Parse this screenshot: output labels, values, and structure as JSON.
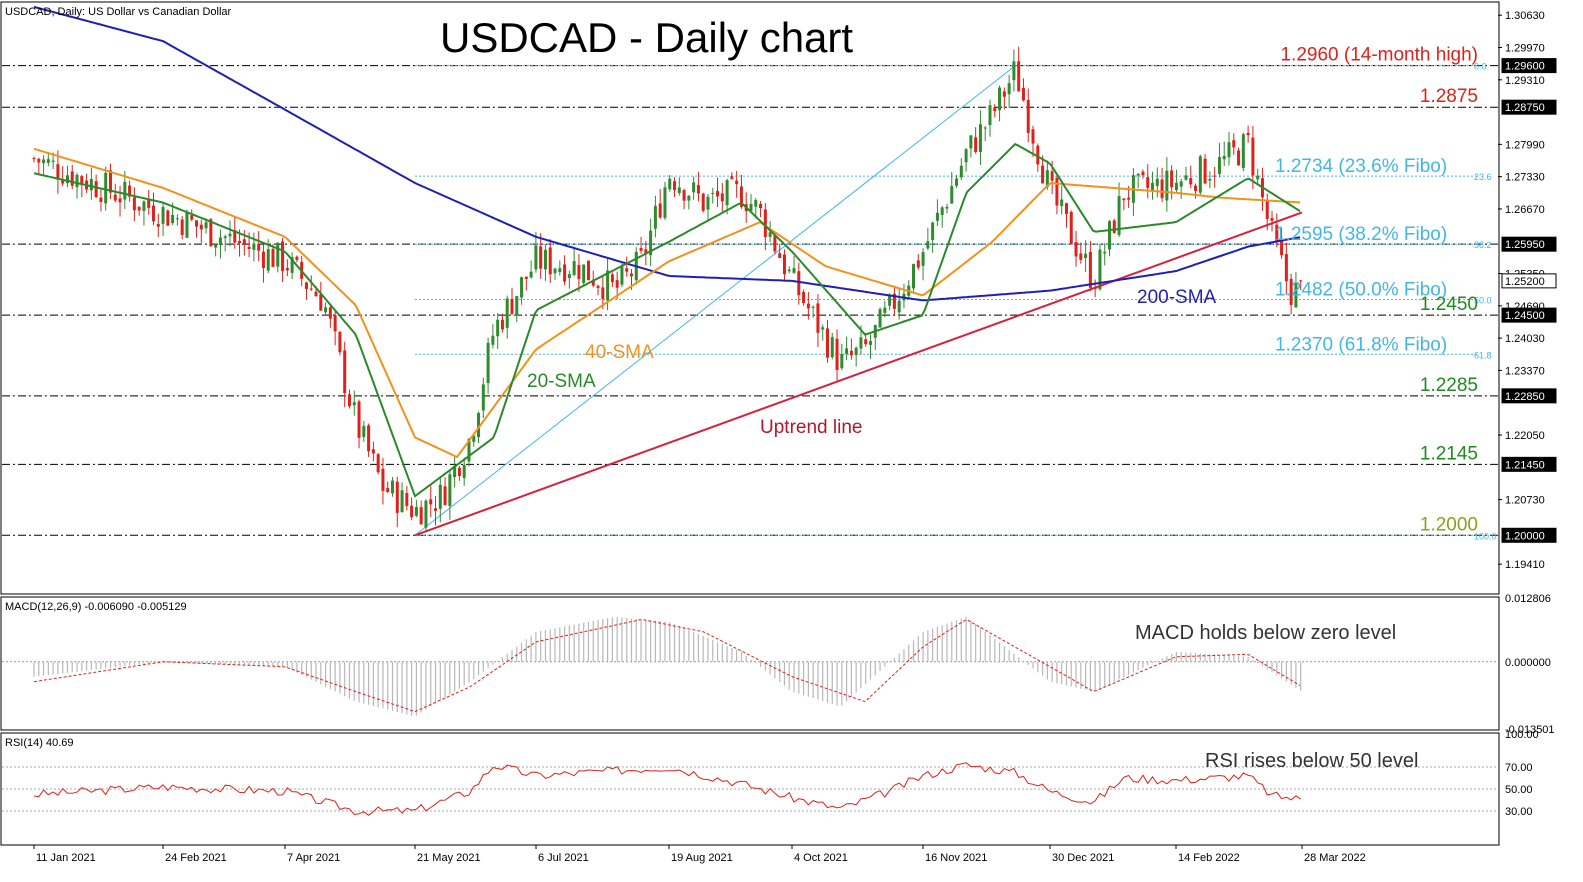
{
  "header": {
    "symbol_info": "USDCAD, Daily:  US Dollar vs Canadian Dollar",
    "title": "USDCAD - Daily chart"
  },
  "colors": {
    "up": "#2e8b2e",
    "down": "#e0201a",
    "sma20": "#2a8a2a",
    "sma40": "#f2911b",
    "sma200": "#1f1fb4",
    "uptrend": "#d8203c",
    "fibo": "#41b7e8",
    "level": "#000000",
    "macd_hist": "#b8b8b8",
    "macd_signal": "#e0201a",
    "rsi": "#e0201a"
  },
  "chart_data": [
    {
      "type": "candlestick",
      "title": "USDCAD - Daily chart",
      "ylim": [
        1.188,
        1.309
      ],
      "x_ticks": [
        "11 Jan 2021",
        "24 Feb 2021",
        "7 Apr 2021",
        "21 May 2021",
        "6 Jul 2021",
        "19 Aug 2021",
        "4 Oct 2021",
        "16 Nov 2021",
        "30 Dec 2021",
        "14 Feb 2022",
        "28 Mar 2022"
      ],
      "y_ticks": [
        "1.30630",
        "1.29970",
        "1.29310",
        "1.27990",
        "1.27330",
        "1.26670",
        "1.25350",
        "1.24690",
        "1.24030",
        "1.23370",
        "1.22050",
        "1.20730",
        "1.19410"
      ],
      "price_tags": [
        "1.29600",
        "1.28750",
        "1.25950",
        "1.25200",
        "1.24500",
        "1.22850",
        "1.21450",
        "1.20000"
      ],
      "levels": [
        {
          "value": 1.296,
          "label": "1.2960 (14-month high)",
          "color": "#e0201a"
        },
        {
          "value": 1.2875,
          "label": "1.2875",
          "color": "#e0201a"
        },
        {
          "value": 1.2595,
          "label": "",
          "color": "#000000"
        },
        {
          "value": 1.245,
          "label": "1.2450",
          "color": "#1f8a1f"
        },
        {
          "value": 1.2285,
          "label": "1.2285",
          "color": "#1f8a1f"
        },
        {
          "value": 1.2145,
          "label": "1.2145",
          "color": "#1f8a1f"
        },
        {
          "value": 1.2,
          "label": "1.2000",
          "color": "#8aa020"
        }
      ],
      "fibonacci": [
        {
          "value": 1.296,
          "label": "",
          "tag": "0.0"
        },
        {
          "value": 1.2734,
          "label": "1.2734 (23.6% Fibo)",
          "tag": "23.6"
        },
        {
          "value": 1.2595,
          "label": "1.2595 (38.2% Fibo)",
          "tag": "38.2"
        },
        {
          "value": 1.2482,
          "label": "1.2482 (50.0% Fibo)",
          "tag": "50.0"
        },
        {
          "value": 1.237,
          "label": "1.2370 (61.8% Fibo)",
          "tag": "61.8"
        },
        {
          "value": 1.2,
          "label": "",
          "tag": "100.0"
        }
      ],
      "annotations": {
        "sma20": "20-SMA",
        "sma40": "40-SMA",
        "sma200": "200-SMA",
        "uptrend": "Uptrend line"
      },
      "uptrend_line": {
        "from": [
          "21 May 2021",
          1.2
        ],
        "to": [
          "28 Mar 2022",
          1.266
        ]
      },
      "close_path": [
        [
          "11 Jan 2021",
          1.277
        ],
        [
          "24 Feb 2021",
          1.266
        ],
        [
          "7 Apr 2021",
          1.256
        ],
        [
          "20 Apr 2021",
          1.248
        ],
        [
          "1 May 2021",
          1.223
        ],
        [
          "10 May 2021",
          1.21
        ],
        [
          "21 May 2021",
          1.205
        ],
        [
          "31 May 2021",
          1.208
        ],
        [
          "11 Jun 2021",
          1.22
        ],
        [
          "20 Jun 2021",
          1.242
        ],
        [
          "6 Jul 2021",
          1.256
        ],
        [
          "20 Jul 2021",
          1.255
        ],
        [
          "1 Aug 2021",
          1.25
        ],
        [
          "10 Aug 2021",
          1.256
        ],
        [
          "19 Aug 2021",
          1.274
        ],
        [
          "1 Sep 2021",
          1.268
        ],
        [
          "15 Sep 2021",
          1.27
        ],
        [
          "22 Sep 2021",
          1.266
        ],
        [
          "4 Oct 2021",
          1.252
        ],
        [
          "20 Oct 2021",
          1.235
        ],
        [
          "28 Oct 2021",
          1.238
        ],
        [
          "5 Nov 2021",
          1.246
        ],
        [
          "16 Nov 2021",
          1.258
        ],
        [
          "1 Dec 2021",
          1.278
        ],
        [
          "10 Dec 2021",
          1.286
        ],
        [
          "18 Dec 2021",
          1.295
        ],
        [
          "30 Dec 2021",
          1.27
        ],
        [
          "15 Jan 2022",
          1.252
        ],
        [
          "26 Jan 2022",
          1.27
        ],
        [
          "14 Feb 2022",
          1.272
        ],
        [
          "1 Mar 2022",
          1.276
        ],
        [
          "10 Mar 2022",
          1.28
        ],
        [
          "18 Mar 2022",
          1.261
        ],
        [
          "24 Mar 2022",
          1.25
        ],
        [
          "28 Mar 2022",
          1.25
        ]
      ],
      "sma20_path": [
        [
          "11 Jan 2021",
          1.274
        ],
        [
          "24 Feb 2021",
          1.268
        ],
        [
          "7 Apr 2021",
          1.258
        ],
        [
          "1 May 2021",
          1.241
        ],
        [
          "21 May 2021",
          1.208
        ],
        [
          "20 Jun 2021",
          1.22
        ],
        [
          "6 Jul 2021",
          1.246
        ],
        [
          "19 Aug 2021",
          1.26
        ],
        [
          "15 Sep 2021",
          1.268
        ],
        [
          "4 Oct 2021",
          1.258
        ],
        [
          "28 Oct 2021",
          1.241
        ],
        [
          "16 Nov 2021",
          1.245
        ],
        [
          "1 Dec 2021",
          1.27
        ],
        [
          "18 Dec 2021",
          1.28
        ],
        [
          "30 Dec 2021",
          1.276
        ],
        [
          "15 Jan 2022",
          1.262
        ],
        [
          "14 Feb 2022",
          1.264
        ],
        [
          "10 Mar 2022",
          1.273
        ],
        [
          "28 Mar 2022",
          1.266
        ]
      ],
      "sma40_path": [
        [
          "11 Jan 2021",
          1.279
        ],
        [
          "24 Feb 2021",
          1.271
        ],
        [
          "7 Apr 2021",
          1.261
        ],
        [
          "1 May 2021",
          1.247
        ],
        [
          "21 May 2021",
          1.22
        ],
        [
          "6 Jun 2021",
          1.216
        ],
        [
          "6 Jul 2021",
          1.238
        ],
        [
          "19 Aug 2021",
          1.256
        ],
        [
          "22 Sep 2021",
          1.264
        ],
        [
          "15 Oct 2021",
          1.255
        ],
        [
          "16 Nov 2021",
          1.249
        ],
        [
          "10 Dec 2021",
          1.26
        ],
        [
          "30 Dec 2021",
          1.272
        ],
        [
          "14 Feb 2022",
          1.27
        ],
        [
          "1 Mar 2022",
          1.269
        ],
        [
          "28 Mar 2022",
          1.268
        ]
      ],
      "sma200_path": [
        [
          "11 Jan 2021",
          1.308
        ],
        [
          "24 Feb 2021",
          1.301
        ],
        [
          "7 Apr 2021",
          1.287
        ],
        [
          "21 May 2021",
          1.272
        ],
        [
          "6 Jul 2021",
          1.261
        ],
        [
          "19 Aug 2021",
          1.253
        ],
        [
          "4 Oct 2021",
          1.252
        ],
        [
          "16 Nov 2021",
          1.248
        ],
        [
          "30 Dec 2021",
          1.25
        ],
        [
          "14 Feb 2022",
          1.254
        ],
        [
          "10 Mar 2022",
          1.259
        ],
        [
          "28 Mar 2022",
          1.261
        ]
      ]
    },
    {
      "type": "bar",
      "title": "MACD(12,26,9) -0.006090 -0.005129",
      "annotation": "MACD holds below zero level",
      "ylim": [
        -0.013501,
        0.012806
      ],
      "y_ticks": [
        "0.012806",
        "0.000000",
        "-0.013501"
      ],
      "histogram_path": [
        [
          "11 Jan 2021",
          -0.003
        ],
        [
          "24 Feb 2021",
          0.0
        ],
        [
          "7 Apr 2021",
          -0.001
        ],
        [
          "1 May 2021",
          -0.008
        ],
        [
          "21 May 2021",
          -0.011
        ],
        [
          "11 Jun 2021",
          -0.004
        ],
        [
          "6 Jul 2021",
          0.006
        ],
        [
          "1 Aug 2021",
          0.009
        ],
        [
          "19 Aug 2021",
          0.008
        ],
        [
          "15 Sep 2021",
          0.002
        ],
        [
          "4 Oct 2021",
          -0.006
        ],
        [
          "20 Oct 2021",
          -0.009
        ],
        [
          "16 Nov 2021",
          0.006
        ],
        [
          "1 Dec 2021",
          0.009
        ],
        [
          "30 Dec 2021",
          -0.004
        ],
        [
          "15 Jan 2022",
          -0.006
        ],
        [
          "14 Feb 2022",
          0.002
        ],
        [
          "10 Mar 2022",
          0.001
        ],
        [
          "28 Mar 2022",
          -0.006
        ]
      ],
      "signal_path": [
        [
          "11 Jan 2021",
          -0.004
        ],
        [
          "24 Feb 2021",
          0.0
        ],
        [
          "7 Apr 2021",
          -0.001
        ],
        [
          "1 May 2021",
          -0.006
        ],
        [
          "21 May 2021",
          -0.01
        ],
        [
          "11 Jun 2021",
          -0.005
        ],
        [
          "6 Jul 2021",
          0.004
        ],
        [
          "10 Aug 2021",
          0.0085
        ],
        [
          "1 Sep 2021",
          0.006
        ],
        [
          "4 Oct 2021",
          -0.003
        ],
        [
          "28 Oct 2021",
          -0.008
        ],
        [
          "16 Nov 2021",
          0.003
        ],
        [
          "1 Dec 2021",
          0.0085
        ],
        [
          "30 Dec 2021",
          -0.001
        ],
        [
          "15 Jan 2022",
          -0.006
        ],
        [
          "14 Feb 2022",
          0.001
        ],
        [
          "10 Mar 2022",
          0.0015
        ],
        [
          "28 Mar 2022",
          -0.005
        ]
      ]
    },
    {
      "type": "line",
      "title": "RSI(14) 40.69",
      "annotation": "RSI rises below 50 level",
      "ylim": [
        0,
        100
      ],
      "y_ticks": [
        "100.00",
        "70.00",
        "50.00",
        "30.00"
      ],
      "guide_levels": [
        70,
        50,
        30
      ],
      "series_path": [
        [
          "11 Jan 2021",
          45
        ],
        [
          "24 Feb 2021",
          52
        ],
        [
          "7 Apr 2021",
          48
        ],
        [
          "1 May 2021",
          30
        ],
        [
          "21 May 2021",
          30
        ],
        [
          "11 Jun 2021",
          48
        ],
        [
          "20 Jun 2021",
          72
        ],
        [
          "6 Jul 2021",
          62
        ],
        [
          "19 Aug 2021",
          70
        ],
        [
          "15 Sep 2021",
          55
        ],
        [
          "4 Oct 2021",
          42
        ],
        [
          "20 Oct 2021",
          32
        ],
        [
          "5 Nov 2021",
          48
        ],
        [
          "16 Nov 2021",
          62
        ],
        [
          "1 Dec 2021",
          72
        ],
        [
          "18 Dec 2021",
          65
        ],
        [
          "30 Dec 2021",
          48
        ],
        [
          "15 Jan 2022",
          38
        ],
        [
          "26 Jan 2022",
          60
        ],
        [
          "14 Feb 2022",
          58
        ],
        [
          "10 Mar 2022",
          62
        ],
        [
          "18 Mar 2022",
          44
        ],
        [
          "28 Mar 2022",
          40.69
        ]
      ]
    }
  ]
}
